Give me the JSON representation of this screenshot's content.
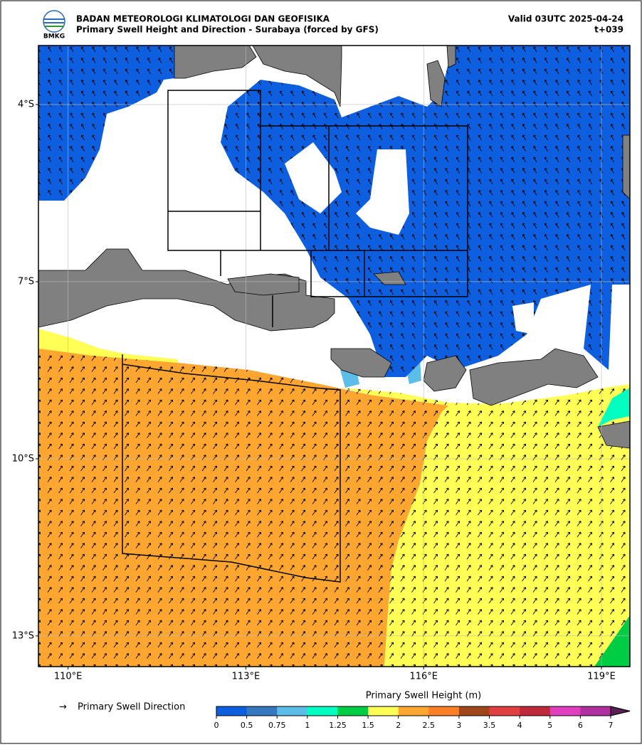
{
  "header": {
    "logo_text": "BMKG",
    "agency": "BADAN METEOROLOGI KLIMATOLOGI DAN GEOFISIKA",
    "title": "Primary Swell Height and Direction - Surabaya (forced by GFS)",
    "valid": "Valid 03UTC 2025-04-24",
    "lead": "t+039"
  },
  "map": {
    "lon_range": [
      109.5,
      119.48
    ],
    "lat_range": [
      -13.52,
      -3
    ],
    "lon_ticks": [
      {
        "value": 110,
        "label": "110°E"
      },
      {
        "value": 113,
        "label": "113°E"
      },
      {
        "value": 116,
        "label": "116°E"
      },
      {
        "value": 119,
        "label": "119°E"
      }
    ],
    "lat_ticks": [
      {
        "value": -4,
        "label": "4°S"
      },
      {
        "value": -7,
        "label": "7°S"
      },
      {
        "value": -10,
        "label": "10°S"
      },
      {
        "value": -13,
        "label": "13°S"
      }
    ]
  },
  "arrow_legend": {
    "symbol": "→",
    "label": "Primary Swell Direction"
  },
  "colorbar": {
    "title": "Primary Swell Height (m)",
    "ticks": [
      0,
      0.5,
      0.75,
      1,
      1.25,
      1.5,
      2,
      2.5,
      3,
      3.5,
      4,
      5,
      6,
      7
    ],
    "colors": [
      "#0d5fe0",
      "#3478c0",
      "#5bbde8",
      "#00ffc0",
      "#00cc44",
      "#ffff55",
      "#ffa630",
      "#ff7f27",
      "#a0461a",
      "#e04040",
      "#c0283c",
      "#e040c0",
      "#b030a0"
    ],
    "extend_color": "#5b1f53"
  }
}
